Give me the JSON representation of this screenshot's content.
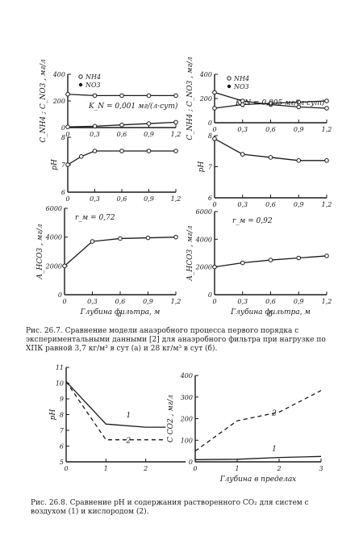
{
  "captions": {
    "fig1": "Рис. 26.7. Сравнение модели анаэробного процесса первого порядка с экспериментальными данными [2] для анаэробного фильтра при нагрузке по ХПК равной 3,7 кг/м³ в сут (а) и 28 кг/м³ в сут (б).",
    "fig2": "Рис. 26.8. Сравнение pH и содержания растворенного CO₂ для систем с воздухом (1) и кислородом (2)."
  },
  "chart_data": [
    {
      "id": "a_nitrogen",
      "type": "line",
      "panel": "а",
      "ylabel": "C_NH4 ; C_NO3 , мг/л",
      "xlim": [
        0,
        1.2
      ],
      "ylim": [
        0,
        400
      ],
      "x_ticks": [
        "0",
        "0,3",
        "0,6",
        "0,9",
        "1,2"
      ],
      "y_ticks": [
        "0",
        "200",
        "400"
      ],
      "legend": [
        "NH4",
        "NO3"
      ],
      "annotation": "K_N = 0,001 мг/(л·сут)",
      "series": [
        {
          "name": "NH4",
          "x": [
            0,
            0.3,
            0.6,
            0.9,
            1.2
          ],
          "y": [
            250,
            240,
            240,
            240,
            240
          ],
          "style": "solid"
        },
        {
          "name": "NO3",
          "x": [
            0,
            0.3,
            0.6,
            0.9,
            1.2
          ],
          "y": [
            5,
            10,
            20,
            30,
            40
          ],
          "style": "solid"
        }
      ]
    },
    {
      "id": "b_nitrogen",
      "type": "line",
      "panel": "б",
      "ylabel": "C_NH4 ; C_NO3 , мг/л",
      "xlim": [
        0,
        1.2
      ],
      "ylim": [
        0,
        400
      ],
      "x_ticks": [
        "0",
        "0,3",
        "0,6",
        "0,9",
        "1,2"
      ],
      "y_ticks": [
        "0",
        "200",
        "400"
      ],
      "legend": [
        "NH4",
        "NO3"
      ],
      "annotation": "K_N = 0,005 мг/(л·сут)",
      "series": [
        {
          "name": "NH4",
          "x": [
            0,
            0.3,
            0.6,
            0.9,
            1.2
          ],
          "y": [
            250,
            180,
            150,
            130,
            120
          ],
          "style": "solid"
        },
        {
          "name": "NO3",
          "x": [
            0,
            0.3,
            0.6,
            0.9,
            1.2
          ],
          "y": [
            120,
            150,
            160,
            170,
            180
          ],
          "style": "solid"
        }
      ]
    },
    {
      "id": "a_ph",
      "type": "line",
      "panel": "а",
      "ylabel": "pH",
      "xlim": [
        0,
        1.2
      ],
      "ylim": [
        6,
        8
      ],
      "x_ticks": [
        "0",
        "0,3",
        "0,6",
        "0,9",
        "1,2"
      ],
      "y_ticks": [
        "6",
        "7",
        "8"
      ],
      "series": [
        {
          "x": [
            0,
            0.15,
            0.3,
            0.6,
            0.9,
            1.2
          ],
          "y": [
            7.0,
            7.3,
            7.5,
            7.5,
            7.5,
            7.5
          ],
          "style": "solid"
        }
      ]
    },
    {
      "id": "b_ph",
      "type": "line",
      "panel": "б",
      "ylabel": "pH",
      "xlim": [
        0,
        1.2
      ],
      "ylim": [
        6,
        8
      ],
      "x_ticks": [
        "0",
        "0,3",
        "0,6",
        "0,9",
        "1,2"
      ],
      "y_ticks": [
        "6",
        "7",
        "8"
      ],
      "series": [
        {
          "x": [
            0,
            0.3,
            0.6,
            0.9,
            1.2
          ],
          "y": [
            7.9,
            7.4,
            7.3,
            7.2,
            7.2
          ],
          "style": "solid"
        }
      ]
    },
    {
      "id": "a_alk",
      "type": "line",
      "panel": "а",
      "ylabel": "A_HCO3 , мг/л",
      "xlabel": "Глубина фильтра, м",
      "xlim": [
        0,
        1.2
      ],
      "ylim": [
        0,
        6000
      ],
      "x_ticks": [
        "0",
        "0,3",
        "0,6",
        "0,9",
        "1,2"
      ],
      "y_ticks": [
        "0",
        "2000",
        "4000",
        "6000"
      ],
      "annotation": "r_м = 0,72",
      "series": [
        {
          "x": [
            0,
            0.3,
            0.6,
            0.9,
            1.2
          ],
          "y": [
            2000,
            3700,
            3900,
            3950,
            4000
          ],
          "style": "solid"
        }
      ]
    },
    {
      "id": "b_alk",
      "type": "line",
      "panel": "б",
      "ylabel": "A_HCO3 , мг/л",
      "xlabel": "Глубина фильтра, м",
      "xlim": [
        0,
        1.2
      ],
      "ylim": [
        0,
        6000
      ],
      "x_ticks": [
        "0",
        "0,3",
        "0,6",
        "0,9",
        "1,2"
      ],
      "y_ticks": [
        "0",
        "2000",
        "4000",
        "6000"
      ],
      "annotation": "r_м = 0,92",
      "series": [
        {
          "x": [
            0,
            0.3,
            0.6,
            0.9,
            1.2
          ],
          "y": [
            2000,
            2300,
            2500,
            2650,
            2800
          ],
          "style": "solid"
        }
      ]
    },
    {
      "id": "fig8_ph",
      "type": "line",
      "ylabel": "pH",
      "xlim": [
        0,
        3
      ],
      "ylim": [
        5,
        11
      ],
      "x_ticks": [
        "0",
        "1",
        "2"
      ],
      "y_ticks": [
        "5",
        "6",
        "7",
        "8",
        "9",
        "10",
        "11"
      ],
      "series": [
        {
          "name": "1",
          "x": [
            0,
            1,
            2,
            2.5
          ],
          "y": [
            10.1,
            7.4,
            7.2,
            7.2
          ],
          "style": "solid"
        },
        {
          "name": "2",
          "x": [
            0,
            1,
            2,
            2.5
          ],
          "y": [
            10.1,
            6.4,
            6.4,
            6.4
          ],
          "style": "dashed"
        }
      ]
    },
    {
      "id": "fig8_co2",
      "type": "line",
      "ylabel": "C CO2 , мг/л",
      "xlabel": "Глубина в пределах",
      "xlim": [
        0,
        3
      ],
      "ylim": [
        0,
        400
      ],
      "x_ticks": [
        "0",
        "1",
        "2",
        "3"
      ],
      "y_ticks": [
        "0",
        "100",
        "200",
        "300",
        "400"
      ],
      "series": [
        {
          "name": "1",
          "x": [
            0,
            1,
            2,
            3
          ],
          "y": [
            10,
            12,
            20,
            25
          ],
          "style": "solid"
        },
        {
          "name": "2",
          "x": [
            0,
            1,
            2,
            3
          ],
          "y": [
            50,
            190,
            230,
            330
          ],
          "style": "dashed"
        }
      ]
    }
  ]
}
